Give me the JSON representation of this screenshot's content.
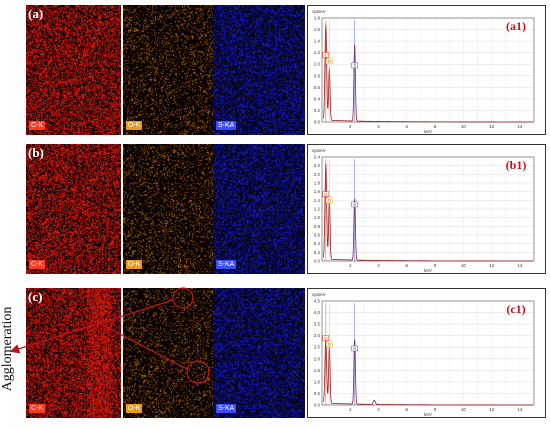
{
  "figure": {
    "rows": [
      {
        "id": "a",
        "map_label": "(a)",
        "spectrum_label": "(a1)",
        "tags": [
          "C-K",
          "O-K",
          "S-KA"
        ],
        "spectrum": {
          "unit": "cps/eV",
          "xlabel": "keV",
          "ymax": 1.8,
          "yticks": [
            "1.8",
            "1.6",
            "1.4",
            "1.2",
            "1.0",
            "0.8",
            "0.6",
            "0.4",
            "0.2",
            "0.0"
          ],
          "peak_labels": [
            "C",
            "O",
            "S"
          ]
        }
      },
      {
        "id": "b",
        "map_label": "(b)",
        "spectrum_label": "(b1)",
        "tags": [
          "C-K",
          "O-K",
          "S-KA"
        ],
        "spectrum": {
          "unit": "cps/eV",
          "xlabel": "keV",
          "ymax": 2.4,
          "yticks": [
            "2.4",
            "2.2",
            "2.0",
            "1.8",
            "1.6",
            "1.4",
            "1.2",
            "1.0",
            "0.8",
            "0.6",
            "0.4",
            "0.2",
            "0.0"
          ],
          "peak_labels": [
            "C",
            "O",
            "S"
          ]
        }
      },
      {
        "id": "c",
        "map_label": "(c)",
        "spectrum_label": "(c1)",
        "tags": [
          "C-K",
          "O-K",
          "S-KA"
        ],
        "spectrum": {
          "unit": "cps/eV",
          "xlabel": "keV",
          "ymax": 4.5,
          "yticks": [
            "4.5",
            "4.0",
            "3.5",
            "3.0",
            "2.5",
            "2.0",
            "1.5",
            "1.0",
            "0.5",
            "0.0"
          ],
          "peak_labels": [
            "C",
            "O",
            "S"
          ]
        }
      }
    ],
    "xticks": [
      "2",
      "4",
      "6",
      "8",
      "10",
      "12",
      "14"
    ],
    "annotation": "Agglomeration",
    "colors": {
      "carbon": "#ff2a1a",
      "oxygen": "#ffb020",
      "sulfur": "#3a4dff",
      "label_red": "#c0141c",
      "arrow": "#c0141c"
    }
  }
}
